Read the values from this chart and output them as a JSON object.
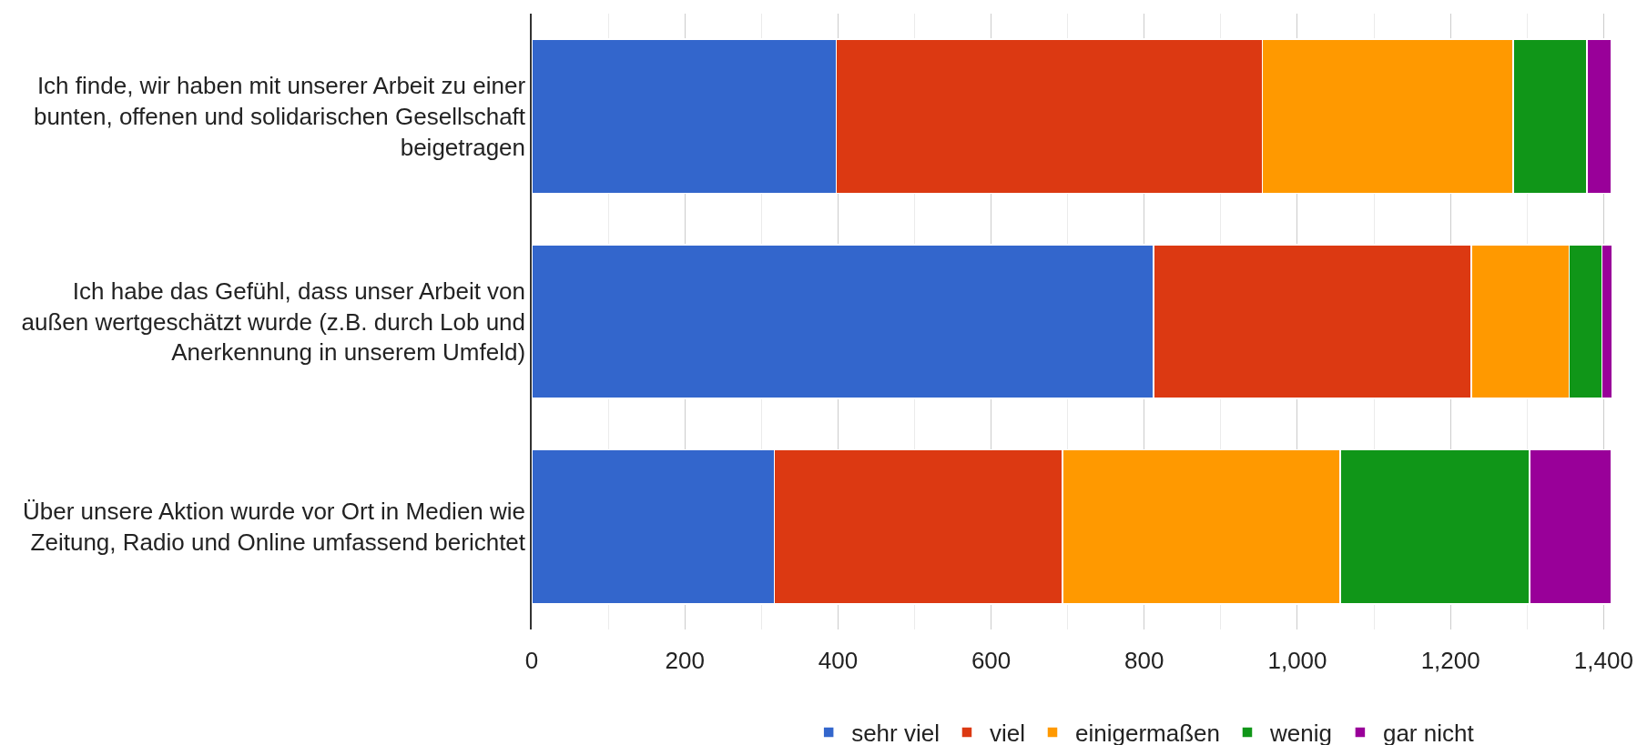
{
  "chart_data": {
    "type": "bar",
    "orientation": "horizontal",
    "stacked": true,
    "categories": [
      "Ich finde, wir haben mit unserer Arbeit zu einer\nbunten, offenen und solidarischen Gesellschaft\nbeigetragen",
      "Ich habe das Gefühl, dass unser Arbeit von\naußen wertgeschätzt wurde (z.B. durch Lob und\nAnerkennung in unserem Umfeld)",
      "Über unsere Aktion wurde vor Ort in Medien wie\nZeitung, Radio und Online umfassend berichtet"
    ],
    "series": [
      {
        "name": "sehr viel",
        "color": "#3366cc",
        "values": [
          398,
          812,
          317
        ]
      },
      {
        "name": "viel",
        "color": "#dc3912",
        "values": [
          556,
          415,
          376
        ]
      },
      {
        "name": "einigermaßen",
        "color": "#ff9900",
        "values": [
          328,
          128,
          363
        ]
      },
      {
        "name": "wenig",
        "color": "#109618",
        "values": [
          96,
          43,
          247
        ]
      },
      {
        "name": "gar nicht",
        "color": "#990099",
        "values": [
          32,
          13,
          107
        ]
      }
    ],
    "xlim": [
      0,
      1415
    ],
    "xticks": [
      0,
      {
        "value": 100,
        "label": null
      },
      200,
      {
        "value": 300,
        "label": null
      },
      400,
      {
        "value": 500,
        "label": null
      },
      600,
      {
        "value": 700,
        "label": null
      },
      800,
      {
        "value": 900,
        "label": null
      },
      {
        "value": 1000,
        "label": "1,000"
      },
      {
        "value": 1100,
        "label": null
      },
      {
        "value": 1200,
        "label": "1,200"
      },
      {
        "value": 1300,
        "label": null
      },
      {
        "value": 1400,
        "label": "1,400"
      }
    ],
    "grid": "x",
    "legend": "bottom"
  }
}
